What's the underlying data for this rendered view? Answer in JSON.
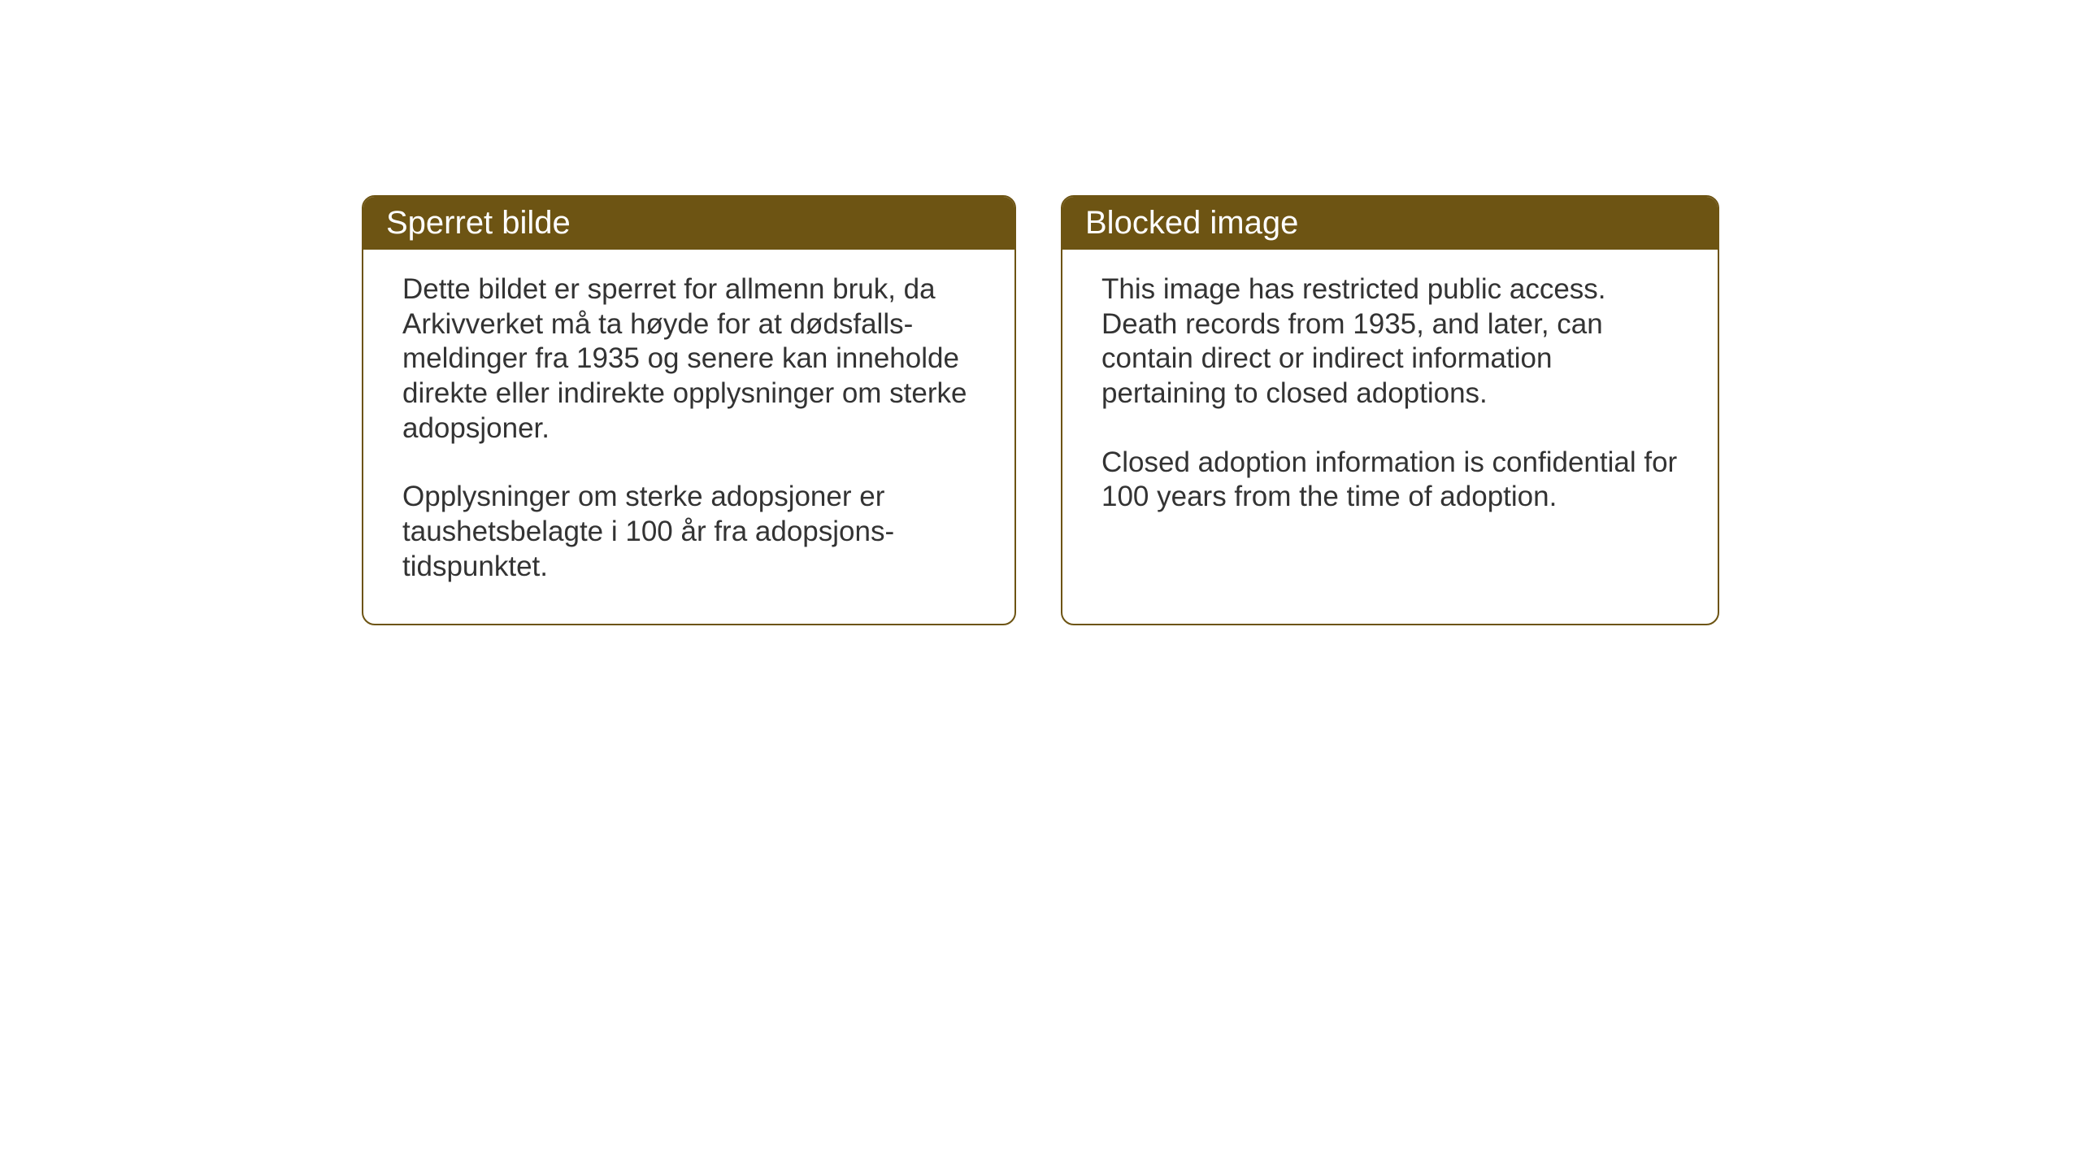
{
  "notices": {
    "left": {
      "title": "Sperret bilde",
      "paragraph1": "Dette bildet er sperret for allmenn bruk, da Arkivverket må ta høyde for at dødsfalls-meldinger fra 1935 og senere kan inneholde direkte eller indirekte opplysninger om sterke adopsjoner.",
      "paragraph2": "Opplysninger om sterke adopsjoner er taushetsbelagte i 100 år fra adopsjons-tidspunktet."
    },
    "right": {
      "title": "Blocked image",
      "paragraph1": "This image has restricted public access. Death records from 1935, and later, can contain direct or indirect information pertaining to closed adoptions.",
      "paragraph2": "Closed adoption information is confidential for 100 years from the time of adoption."
    }
  },
  "styling": {
    "header_bg_color": "#6d5413",
    "header_text_color": "#ffffff",
    "border_color": "#6d5413",
    "body_text_color": "#333333",
    "background_color": "#ffffff",
    "header_fontsize": 40,
    "body_fontsize": 35,
    "border_radius": 16,
    "border_width": 2
  }
}
